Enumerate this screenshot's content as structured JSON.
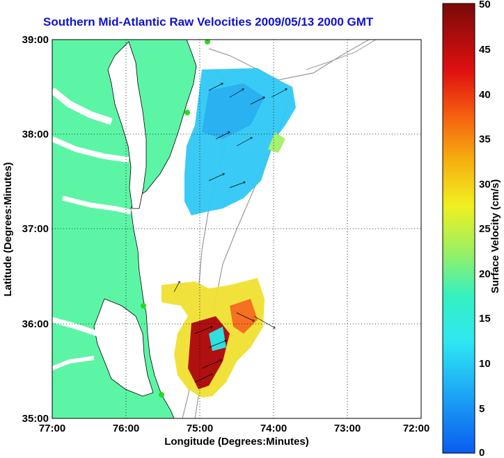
{
  "title": "Southern Mid-Atlantic Raw Velocities 2009/05/13 2000 GMT",
  "map": {
    "xlabel": "Longitude (Degrees:Minutes)",
    "ylabel": "Latitude (Degrees:Minutes)",
    "x_ticks": [
      "77:00",
      "76:00",
      "75:00",
      "74:00",
      "73:00",
      "72:00"
    ],
    "y_ticks": [
      "39:00",
      "38:00",
      "37:00",
      "36:00",
      "35:00"
    ],
    "grid": "dotted",
    "land_color": "#5cf5a5",
    "station_color": "#22dd22"
  },
  "colorbar": {
    "label": "Surface Velocity (cm/s)",
    "ticks": [
      "0",
      "5",
      "10",
      "15",
      "20",
      "25",
      "30",
      "35",
      "40",
      "45",
      "50"
    ],
    "min": 0,
    "max": 50
  }
}
